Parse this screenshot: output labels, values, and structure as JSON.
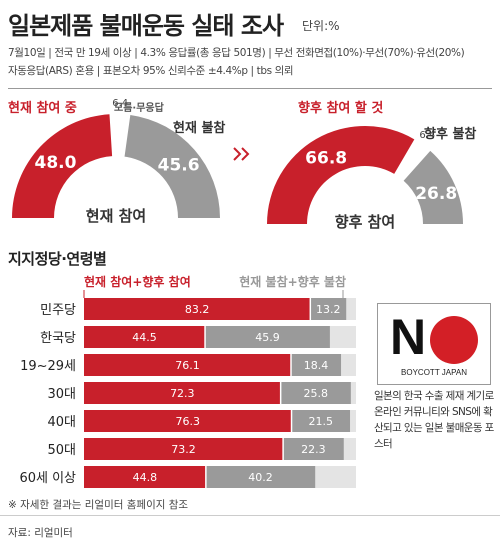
{
  "header": {
    "title": "일본제품 불매운동 실태 조사",
    "unit": "단위:%",
    "meta_line1": "7월10일 | 전국 만 19세 이상 | 4.3% 응답률(총 응답 501명) | 무선 전화면접(10%)·무선(70%)·유선(20%)",
    "meta_line2": "자동응답(ARS) 혼용 | 표본오차 95% 신뢰수준 ±4.4%p | tbs 의뢰"
  },
  "chart_data": [
    {
      "type": "pie",
      "title": "현재 참여",
      "slices": [
        {
          "label": "현재 참여 중",
          "value": 48.0,
          "color": "#c8202b"
        },
        {
          "label": "모름·무응답",
          "value": 6.4,
          "color": "#ffffff"
        },
        {
          "label": "현재 불참",
          "value": 45.6,
          "color": "#9a9a9a"
        }
      ]
    },
    {
      "type": "pie",
      "title": "향후 참여",
      "slices": [
        {
          "label": "향후 참여 할 것",
          "value": 66.8,
          "color": "#c8202b"
        },
        {
          "label": "",
          "value": 6.4,
          "color": "#ffffff"
        },
        {
          "label": "향후 불참",
          "value": 26.8,
          "color": "#9a9a9a"
        }
      ]
    },
    {
      "type": "bar",
      "title": "지지정당·연령별",
      "series": [
        {
          "name": "현재 참여+향후 참여",
          "color": "#c8202b",
          "values": [
            83.2,
            44.5,
            76.1,
            72.3,
            76.3,
            73.2,
            44.8
          ]
        },
        {
          "name": "현재 불참+향후 불참",
          "color": "#9a9a9a",
          "values": [
            13.2,
            45.9,
            18.4,
            25.8,
            21.5,
            22.3,
            40.2
          ]
        }
      ],
      "categories": [
        "민주당",
        "한국당",
        "19~29세",
        "30대",
        "40대",
        "50대",
        "60세 이상"
      ],
      "xlim": [
        0,
        100
      ]
    }
  ],
  "poster": {
    "letter": "N",
    "text": "BOYCOTT JAPAN",
    "caption": "일본의 한국 수출 제재 계기로 온라인 커뮤니티와 SNS에 확산되고 있는 일본 불매운동 포스터"
  },
  "footer": {
    "note": "※ 자세한 결과는 리얼미터 홈페이지 참조",
    "source": "자료: 리얼미터"
  },
  "colors": {
    "red": "#c8202b",
    "gray": "#9a9a9a",
    "bg_bar": "#e4e4e4"
  }
}
